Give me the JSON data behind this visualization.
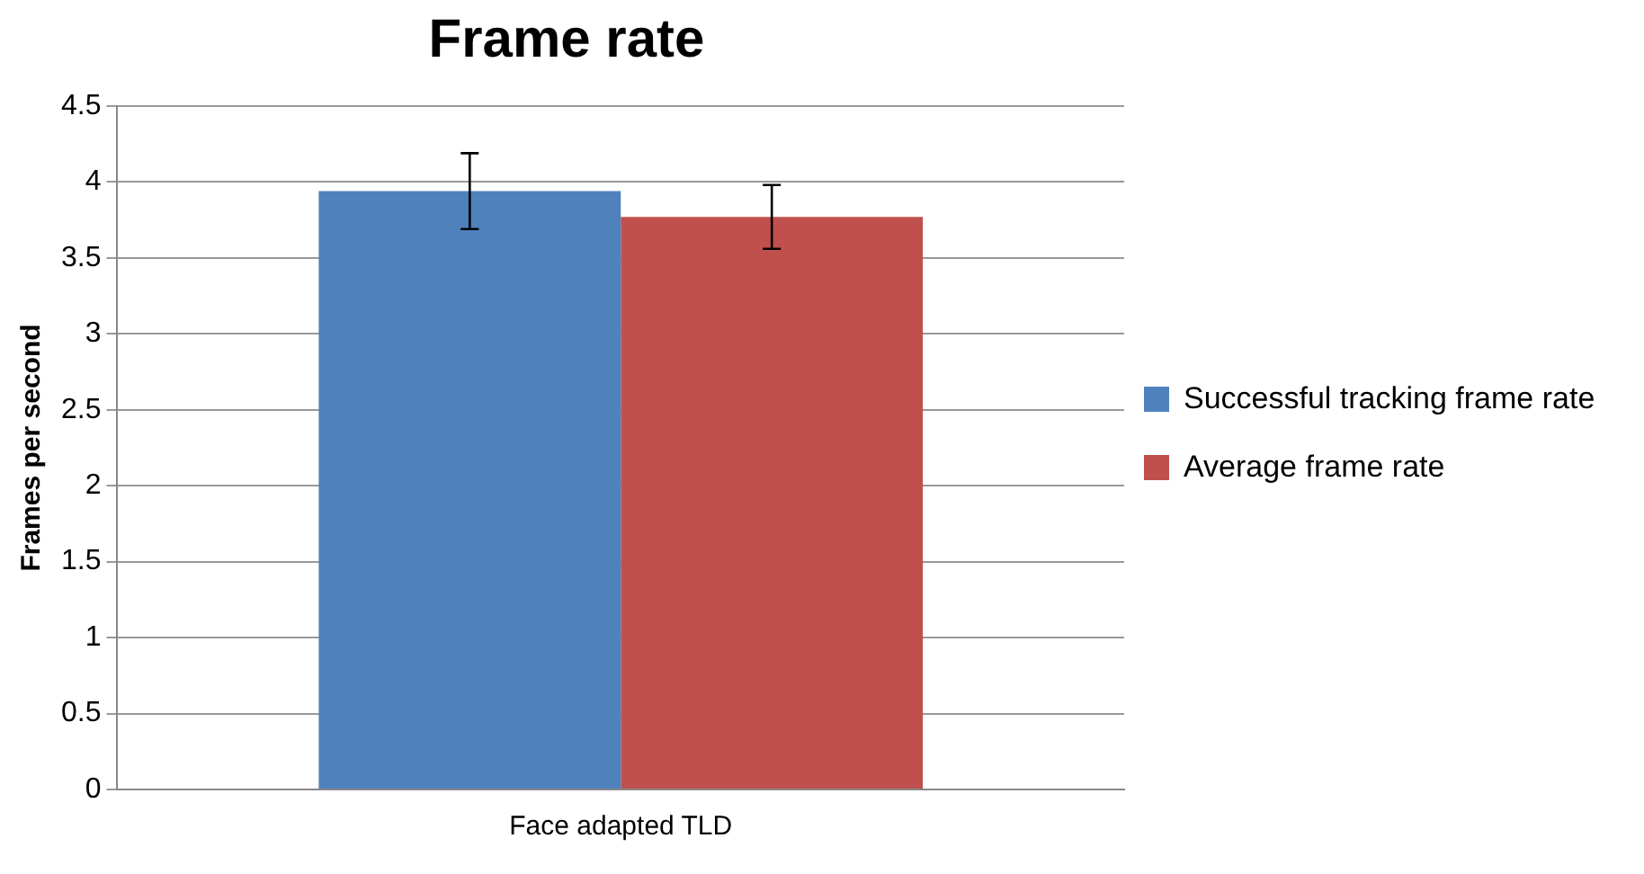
{
  "chart_data": {
    "type": "bar",
    "title": "Frame rate",
    "ylabel": "Frames per second",
    "categories": [
      "Face adapted TLD"
    ],
    "series": [
      {
        "name": "Successful tracking frame rate",
        "color": "#4f81bd",
        "values": [
          3.94
        ],
        "errors": [
          0.25
        ]
      },
      {
        "name": "Average frame rate",
        "color": "#c0504d",
        "values": [
          3.77
        ],
        "errors": [
          0.21
        ]
      }
    ],
    "ylim": [
      0,
      4.5
    ],
    "yticks": [
      0,
      0.5,
      1,
      1.5,
      2,
      2.5,
      3,
      3.5,
      4,
      4.5
    ],
    "grid": "y",
    "legend": "right"
  }
}
